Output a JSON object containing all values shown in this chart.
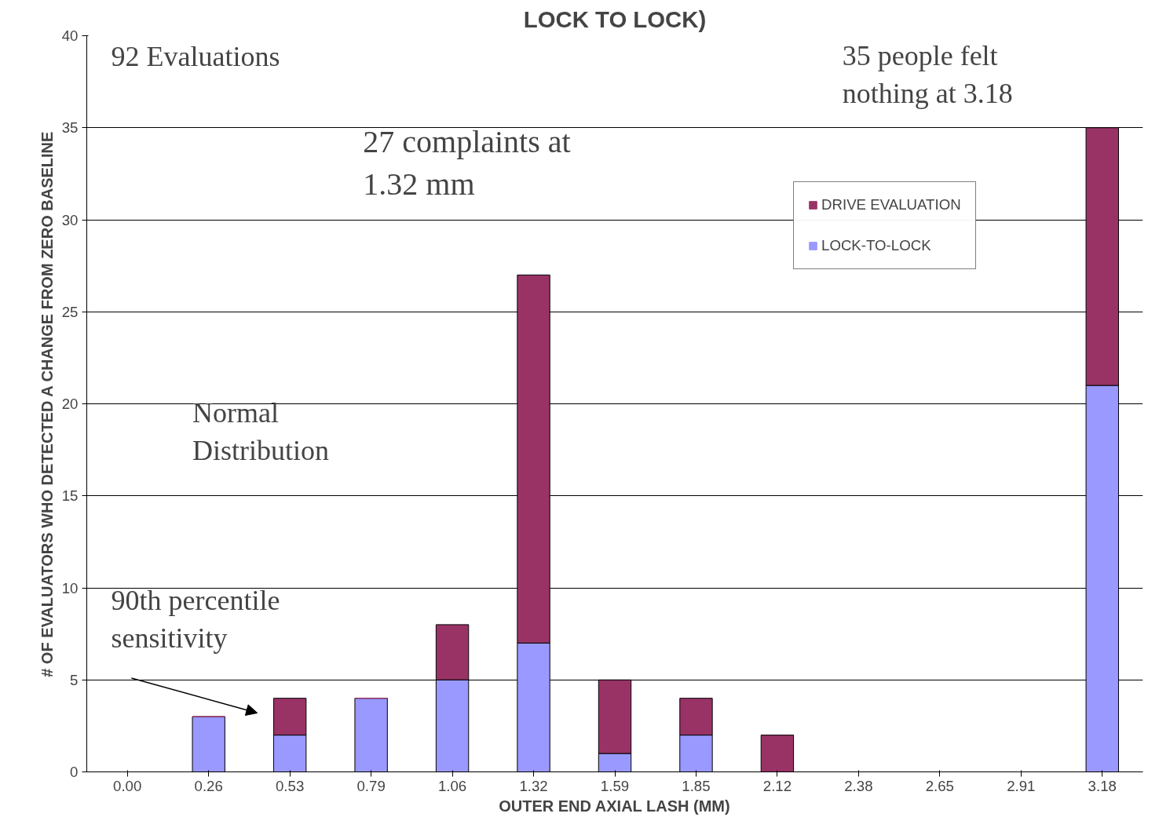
{
  "chart_data": {
    "type": "bar",
    "title": "LOCK TO LOCK)",
    "xlabel": "OUTER END AXIAL LASH (MM)",
    "ylabel": "# OF EVALUATORS WHO DETECTED A CHANGE FROM ZERO BASELINE",
    "categories": [
      "0.00",
      "0.26",
      "0.53",
      "0.79",
      "1.06",
      "1.32",
      "1.59",
      "1.85",
      "2.12",
      "2.38",
      "2.65",
      "2.91",
      "3.18"
    ],
    "stacked": true,
    "series": [
      {
        "name": "LOCK-TO-LOCK",
        "color": "#9999ff",
        "values": [
          0,
          3,
          2,
          4,
          5,
          7,
          1,
          2,
          0,
          0,
          0,
          0,
          21
        ]
      },
      {
        "name": "DRIVE EVALUATION",
        "color": "#993366",
        "values": [
          0,
          0,
          2,
          0,
          3,
          20,
          4,
          2,
          2,
          0,
          0,
          0,
          14
        ]
      }
    ],
    "ylim": [
      0,
      40
    ],
    "yticks": [
      0,
      5,
      10,
      15,
      20,
      25,
      30,
      35,
      40
    ],
    "grid": "y",
    "legend": "top right",
    "annotations": [
      "92 Evaluations",
      "27 complaints at\n1.32 mm",
      "35 people felt\nnothing at 3.18",
      "Normal\nDistribution",
      "90th percentile\nsensitivity"
    ]
  }
}
